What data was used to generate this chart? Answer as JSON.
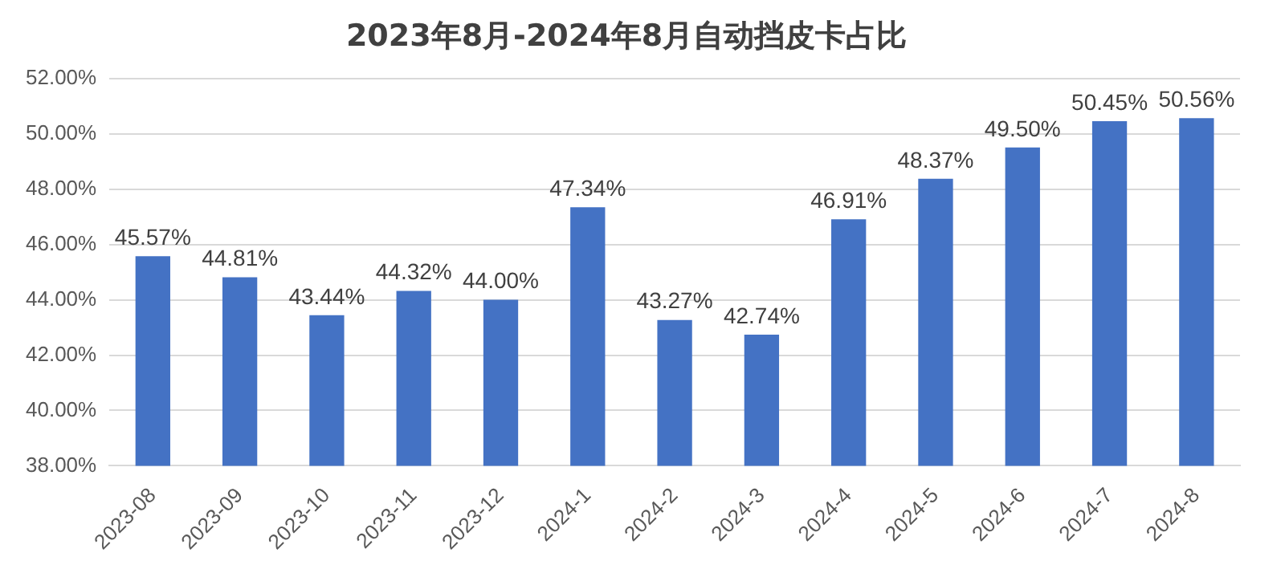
{
  "chart_data": {
    "type": "bar",
    "title": "2023年8月-2024年8月自动挡皮卡占比",
    "categories": [
      "2023-08",
      "2023-09",
      "2023-10",
      "2023-11",
      "2023-12",
      "2024-1",
      "2024-2",
      "2024-3",
      "2024-4",
      "2024-5",
      "2024-6",
      "2024-7",
      "2024-8"
    ],
    "values": [
      45.57,
      44.81,
      43.44,
      44.32,
      44.0,
      47.34,
      43.27,
      42.74,
      46.91,
      48.37,
      49.5,
      50.45,
      50.56
    ],
    "value_labels": [
      "45.57%",
      "44.81%",
      "43.44%",
      "44.32%",
      "44.00%",
      "47.34%",
      "43.27%",
      "42.74%",
      "46.91%",
      "48.37%",
      "49.50%",
      "50.45%",
      "50.56%"
    ],
    "color": "#4472c4",
    "ylim": [
      38,
      52
    ],
    "yticks": [
      {
        "value": 38,
        "label": "38.00%"
      },
      {
        "value": 40,
        "label": "40.00%"
      },
      {
        "value": 42,
        "label": "42.00%"
      },
      {
        "value": 44,
        "label": "44.00%"
      },
      {
        "value": 46,
        "label": "46.00%"
      },
      {
        "value": 48,
        "label": "48.00%"
      },
      {
        "value": 50,
        "label": "50.00%"
      },
      {
        "value": 52,
        "label": "52.00%"
      }
    ],
    "grid": "y",
    "legend": false
  }
}
